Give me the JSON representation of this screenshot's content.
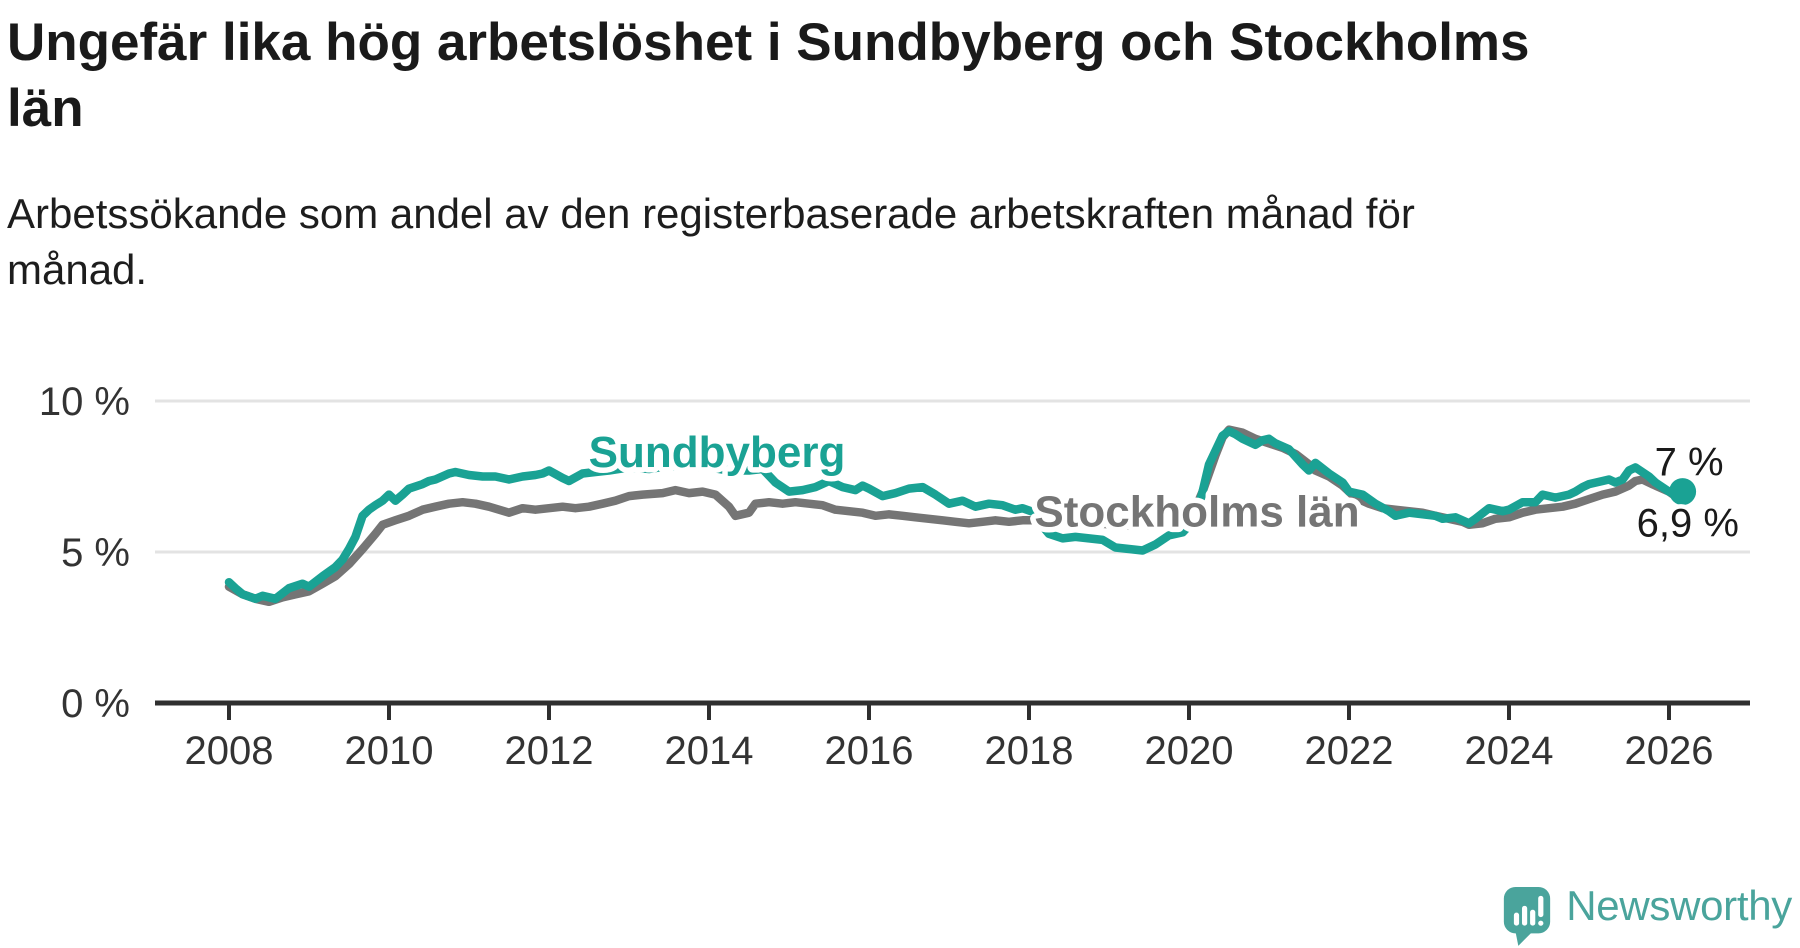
{
  "header": {
    "title": "Ungefär lika hög arbetslöshet i Sundbyberg och Stockholms län",
    "subtitle": "Arbetssökande som andel av den registerbaserade arbetskraften månad för månad."
  },
  "footer": {
    "brand": "Newsworthy"
  },
  "colors": {
    "sundbyberg": "#1aa294",
    "stockholms_lan": "#757575",
    "axis": "#333333",
    "gridline": "#e3e3e3",
    "annotation_text": "#1a1a1a",
    "brand_teal": "#4aa49c"
  },
  "chart_data": {
    "type": "line",
    "unit": "%",
    "grid": "horizontal-only",
    "legend_position": "inline-labels-on-lines",
    "x": {
      "range": [
        2007.5,
        2027.0
      ],
      "tick_labels": [
        "2008",
        "2010",
        "2012",
        "2014",
        "2016",
        "2018",
        "2020",
        "2022",
        "2024",
        "2026"
      ]
    },
    "y": {
      "range": [
        0,
        10.5
      ],
      "ticks": [
        {
          "v": 0,
          "label": "0 %"
        },
        {
          "v": 5,
          "label": "5 %"
        },
        {
          "v": 10,
          "label": "10 %"
        }
      ],
      "gridlines_at": [
        5,
        10
      ]
    },
    "series": [
      {
        "name": "Sundbyberg",
        "color": "#1aa294",
        "end_label": "7 %",
        "end_value": 7.0,
        "end_dot": true,
        "label_anchor": {
          "t": 2014.1,
          "v": 8.35
        },
        "points": [
          [
            2008.0,
            4.0
          ],
          [
            2008.08,
            3.8
          ],
          [
            2008.17,
            3.6
          ],
          [
            2008.33,
            3.45
          ],
          [
            2008.42,
            3.55
          ],
          [
            2008.58,
            3.45
          ],
          [
            2008.75,
            3.8
          ],
          [
            2008.92,
            3.95
          ],
          [
            2009.0,
            3.85
          ],
          [
            2009.17,
            4.2
          ],
          [
            2009.33,
            4.5
          ],
          [
            2009.42,
            4.75
          ],
          [
            2009.5,
            5.1
          ],
          [
            2009.58,
            5.5
          ],
          [
            2009.67,
            6.2
          ],
          [
            2009.75,
            6.4
          ],
          [
            2009.83,
            6.55
          ],
          [
            2009.92,
            6.7
          ],
          [
            2010.0,
            6.9
          ],
          [
            2010.08,
            6.7
          ],
          [
            2010.17,
            6.9
          ],
          [
            2010.25,
            7.1
          ],
          [
            2010.42,
            7.25
          ],
          [
            2010.5,
            7.35
          ],
          [
            2010.58,
            7.4
          ],
          [
            2010.75,
            7.6
          ],
          [
            2010.83,
            7.65
          ],
          [
            2011.0,
            7.55
          ],
          [
            2011.17,
            7.5
          ],
          [
            2011.33,
            7.5
          ],
          [
            2011.5,
            7.4
          ],
          [
            2011.67,
            7.5
          ],
          [
            2011.83,
            7.55
          ],
          [
            2011.92,
            7.6
          ],
          [
            2012.0,
            7.7
          ],
          [
            2012.17,
            7.45
          ],
          [
            2012.25,
            7.35
          ],
          [
            2012.42,
            7.6
          ],
          [
            2012.58,
            7.65
          ],
          [
            2012.75,
            7.7
          ],
          [
            2013.0,
            7.8
          ],
          [
            2013.25,
            7.75
          ],
          [
            2013.5,
            7.85
          ],
          [
            2013.75,
            7.8
          ],
          [
            2014.0,
            7.8
          ],
          [
            2014.25,
            7.7
          ],
          [
            2014.5,
            7.7
          ],
          [
            2014.67,
            7.75
          ],
          [
            2014.83,
            7.3
          ],
          [
            2015.0,
            7.0
          ],
          [
            2015.17,
            7.05
          ],
          [
            2015.33,
            7.15
          ],
          [
            2015.5,
            7.35
          ],
          [
            2015.67,
            7.15
          ],
          [
            2015.83,
            7.05
          ],
          [
            2015.92,
            7.2
          ],
          [
            2016.0,
            7.1
          ],
          [
            2016.17,
            6.85
          ],
          [
            2016.33,
            6.95
          ],
          [
            2016.5,
            7.1
          ],
          [
            2016.67,
            7.15
          ],
          [
            2016.83,
            6.9
          ],
          [
            2017.0,
            6.6
          ],
          [
            2017.17,
            6.7
          ],
          [
            2017.33,
            6.5
          ],
          [
            2017.5,
            6.6
          ],
          [
            2017.67,
            6.55
          ],
          [
            2017.83,
            6.4
          ],
          [
            2017.92,
            6.45
          ],
          [
            2018.08,
            6.3
          ],
          [
            2018.17,
            5.85
          ],
          [
            2018.25,
            5.6
          ],
          [
            2018.42,
            5.45
          ],
          [
            2018.58,
            5.5
          ],
          [
            2018.75,
            5.45
          ],
          [
            2018.92,
            5.4
          ],
          [
            2019.08,
            5.15
          ],
          [
            2019.25,
            5.1
          ],
          [
            2019.42,
            5.05
          ],
          [
            2019.58,
            5.25
          ],
          [
            2019.75,
            5.55
          ],
          [
            2019.92,
            5.65
          ],
          [
            2020.08,
            6.1
          ],
          [
            2020.17,
            7.0
          ],
          [
            2020.25,
            7.9
          ],
          [
            2020.42,
            8.85
          ],
          [
            2020.5,
            9.0
          ],
          [
            2020.58,
            8.9
          ],
          [
            2020.67,
            8.75
          ],
          [
            2020.83,
            8.55
          ],
          [
            2020.92,
            8.7
          ],
          [
            2021.0,
            8.75
          ],
          [
            2021.08,
            8.6
          ],
          [
            2021.25,
            8.4
          ],
          [
            2021.42,
            7.9
          ],
          [
            2021.5,
            7.7
          ],
          [
            2021.58,
            7.95
          ],
          [
            2021.75,
            7.6
          ],
          [
            2021.92,
            7.3
          ],
          [
            2022.0,
            7.0
          ],
          [
            2022.17,
            6.9
          ],
          [
            2022.33,
            6.6
          ],
          [
            2022.5,
            6.35
          ],
          [
            2022.58,
            6.2
          ],
          [
            2022.75,
            6.3
          ],
          [
            2022.92,
            6.25
          ],
          [
            2023.08,
            6.2
          ],
          [
            2023.17,
            6.1
          ],
          [
            2023.33,
            6.15
          ],
          [
            2023.5,
            5.95
          ],
          [
            2023.58,
            6.1
          ],
          [
            2023.75,
            6.45
          ],
          [
            2023.92,
            6.35
          ],
          [
            2024.0,
            6.4
          ],
          [
            2024.17,
            6.65
          ],
          [
            2024.33,
            6.65
          ],
          [
            2024.42,
            6.9
          ],
          [
            2024.58,
            6.8
          ],
          [
            2024.75,
            6.9
          ],
          [
            2024.83,
            7.0
          ],
          [
            2024.92,
            7.15
          ],
          [
            2025.0,
            7.25
          ],
          [
            2025.17,
            7.35
          ],
          [
            2025.25,
            7.4
          ],
          [
            2025.33,
            7.3
          ],
          [
            2025.42,
            7.4
          ],
          [
            2025.5,
            7.7
          ],
          [
            2025.58,
            7.8
          ],
          [
            2025.75,
            7.5
          ],
          [
            2025.83,
            7.3
          ],
          [
            2026.0,
            7.0
          ],
          [
            2026.08,
            6.9
          ],
          [
            2026.17,
            7.0
          ]
        ]
      },
      {
        "name": "Stockholms län",
        "color": "#757575",
        "end_label": "6,9 %",
        "end_value": 6.9,
        "end_dot": false,
        "label_anchor": {
          "t": 2020.1,
          "v": 6.38
        },
        "points": [
          [
            2008.0,
            3.85
          ],
          [
            2008.17,
            3.6
          ],
          [
            2008.33,
            3.45
          ],
          [
            2008.5,
            3.35
          ],
          [
            2008.67,
            3.5
          ],
          [
            2008.83,
            3.6
          ],
          [
            2009.0,
            3.7
          ],
          [
            2009.17,
            3.95
          ],
          [
            2009.33,
            4.2
          ],
          [
            2009.5,
            4.6
          ],
          [
            2009.67,
            5.1
          ],
          [
            2009.83,
            5.6
          ],
          [
            2009.92,
            5.9
          ],
          [
            2010.08,
            6.05
          ],
          [
            2010.25,
            6.2
          ],
          [
            2010.42,
            6.4
          ],
          [
            2010.58,
            6.5
          ],
          [
            2010.75,
            6.6
          ],
          [
            2010.92,
            6.65
          ],
          [
            2011.08,
            6.6
          ],
          [
            2011.25,
            6.5
          ],
          [
            2011.5,
            6.3
          ],
          [
            2011.67,
            6.45
          ],
          [
            2011.83,
            6.4
          ],
          [
            2012.0,
            6.45
          ],
          [
            2012.17,
            6.5
          ],
          [
            2012.33,
            6.45
          ],
          [
            2012.5,
            6.5
          ],
          [
            2012.67,
            6.6
          ],
          [
            2012.83,
            6.7
          ],
          [
            2013.0,
            6.85
          ],
          [
            2013.17,
            6.9
          ],
          [
            2013.42,
            6.95
          ],
          [
            2013.58,
            7.05
          ],
          [
            2013.75,
            6.95
          ],
          [
            2013.92,
            7.0
          ],
          [
            2014.08,
            6.9
          ],
          [
            2014.25,
            6.5
          ],
          [
            2014.33,
            6.2
          ],
          [
            2014.5,
            6.3
          ],
          [
            2014.58,
            6.6
          ],
          [
            2014.75,
            6.65
          ],
          [
            2014.92,
            6.6
          ],
          [
            2015.08,
            6.65
          ],
          [
            2015.25,
            6.6
          ],
          [
            2015.42,
            6.55
          ],
          [
            2015.58,
            6.4
          ],
          [
            2015.75,
            6.35
          ],
          [
            2015.92,
            6.3
          ],
          [
            2016.08,
            6.2
          ],
          [
            2016.25,
            6.25
          ],
          [
            2016.42,
            6.2
          ],
          [
            2016.58,
            6.15
          ],
          [
            2016.75,
            6.1
          ],
          [
            2016.92,
            6.05
          ],
          [
            2017.08,
            6.0
          ],
          [
            2017.25,
            5.95
          ],
          [
            2017.42,
            6.0
          ],
          [
            2017.58,
            6.05
          ],
          [
            2017.75,
            6.0
          ],
          [
            2017.92,
            6.05
          ],
          [
            2018.08,
            6.05
          ],
          [
            2018.33,
            6.0
          ],
          [
            2018.58,
            5.95
          ],
          [
            2018.83,
            5.95
          ],
          [
            2019.08,
            5.9
          ],
          [
            2019.33,
            5.85
          ],
          [
            2019.58,
            5.9
          ],
          [
            2019.83,
            5.9
          ],
          [
            2020.0,
            5.95
          ],
          [
            2020.17,
            7.0
          ],
          [
            2020.33,
            8.2
          ],
          [
            2020.42,
            8.8
          ],
          [
            2020.5,
            9.05
          ],
          [
            2020.67,
            8.95
          ],
          [
            2020.83,
            8.75
          ],
          [
            2021.0,
            8.6
          ],
          [
            2021.17,
            8.45
          ],
          [
            2021.33,
            8.25
          ],
          [
            2021.5,
            7.9
          ],
          [
            2021.58,
            7.7
          ],
          [
            2021.75,
            7.5
          ],
          [
            2021.92,
            7.2
          ],
          [
            2022.08,
            6.8
          ],
          [
            2022.25,
            6.6
          ],
          [
            2022.42,
            6.45
          ],
          [
            2022.58,
            6.4
          ],
          [
            2022.75,
            6.35
          ],
          [
            2022.92,
            6.3
          ],
          [
            2023.08,
            6.2
          ],
          [
            2023.25,
            6.1
          ],
          [
            2023.42,
            6.0
          ],
          [
            2023.5,
            5.9
          ],
          [
            2023.67,
            5.95
          ],
          [
            2023.83,
            6.1
          ],
          [
            2024.0,
            6.15
          ],
          [
            2024.17,
            6.3
          ],
          [
            2024.33,
            6.4
          ],
          [
            2024.5,
            6.45
          ],
          [
            2024.67,
            6.5
          ],
          [
            2024.83,
            6.6
          ],
          [
            2025.0,
            6.75
          ],
          [
            2025.17,
            6.9
          ],
          [
            2025.33,
            7.0
          ],
          [
            2025.5,
            7.2
          ],
          [
            2025.58,
            7.35
          ],
          [
            2025.67,
            7.4
          ],
          [
            2025.83,
            7.2
          ],
          [
            2026.0,
            7.0
          ],
          [
            2026.08,
            6.85
          ],
          [
            2026.17,
            6.9
          ]
        ]
      }
    ]
  }
}
